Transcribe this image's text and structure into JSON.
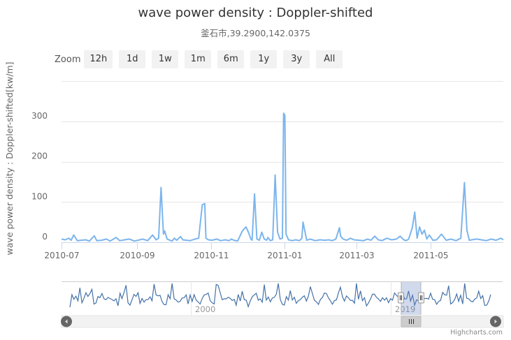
{
  "chart_data": {
    "type": "line",
    "title": "wave power density : Doppler-shifted",
    "subtitle": "釜石市,39.2900,142.0375",
    "ylabel": "wave power density : Doppler-shifted[kw/m]",
    "ylim": [
      0,
      400
    ],
    "y_ticks": [
      "0",
      "100",
      "200",
      "300"
    ],
    "x_ticks": [
      "2010-07",
      "2010-09",
      "2010-11",
      "2011-01",
      "2011-03",
      "2011-05"
    ],
    "grid": true,
    "legend": "none",
    "color": "#7cb5ec",
    "series": [
      {
        "x": [
          "2010-07-01",
          "2010-07-04",
          "2010-07-07",
          "2010-07-09",
          "2010-07-11",
          "2010-07-14",
          "2010-07-17",
          "2010-07-21",
          "2010-07-24",
          "2010-07-28",
          "2010-07-30",
          "2010-08-03",
          "2010-08-07",
          "2010-08-10",
          "2010-08-15",
          "2010-08-18",
          "2010-08-22",
          "2010-08-26",
          "2010-08-30",
          "2010-09-02",
          "2010-09-06",
          "2010-09-10",
          "2010-09-14",
          "2010-09-17",
          "2010-09-19",
          "2010-09-21",
          "2010-09-23",
          "2010-09-24",
          "2010-09-26",
          "2010-09-30",
          "2010-10-02",
          "2010-10-04",
          "2010-10-07",
          "2010-10-09",
          "2010-10-12",
          "2010-10-15",
          "2010-10-19",
          "2010-10-22",
          "2010-10-25",
          "2010-10-27",
          "2010-10-28",
          "2010-10-30",
          "2010-11-02",
          "2010-11-06",
          "2010-11-09",
          "2010-11-13",
          "2010-11-16",
          "2010-11-18",
          "2010-11-20",
          "2010-11-23",
          "2010-11-25",
          "2010-11-27",
          "2010-11-30",
          "2010-12-02",
          "2010-12-04",
          "2010-12-05",
          "2010-12-07",
          "2010-12-09",
          "2010-12-11",
          "2010-12-13",
          "2010-12-15",
          "2010-12-17",
          "2010-12-18",
          "2010-12-20",
          "2010-12-22",
          "2010-12-24",
          "2010-12-26",
          "2010-12-28",
          "2010-12-30",
          "2010-12-31",
          "2011-01-01",
          "2011-01-02",
          "2011-01-04",
          "2011-01-07",
          "2011-01-10",
          "2011-01-13",
          "2011-01-15",
          "2011-01-16",
          "2011-01-19",
          "2011-01-22",
          "2011-01-26",
          "2011-01-30",
          "2011-02-03",
          "2011-02-06",
          "2011-02-09",
          "2011-02-12",
          "2011-02-15",
          "2011-02-16",
          "2011-02-18",
          "2011-02-21",
          "2011-02-24",
          "2011-02-27",
          "2011-03-03",
          "2011-03-07",
          "2011-03-10",
          "2011-03-13",
          "2011-03-16",
          "2011-03-19",
          "2011-03-22",
          "2011-03-26",
          "2011-03-30",
          "2011-04-03",
          "2011-04-06",
          "2011-04-09",
          "2011-04-11",
          "2011-04-13",
          "2011-04-16",
          "2011-04-18",
          "2011-04-20",
          "2011-04-22",
          "2011-04-24",
          "2011-04-26",
          "2011-04-28",
          "2011-04-30",
          "2011-05-03",
          "2011-05-06",
          "2011-05-10",
          "2011-05-14",
          "2011-05-18",
          "2011-05-22",
          "2011-05-26",
          "2011-05-29",
          "2011-05-31",
          "2011-06-02",
          "2011-06-04",
          "2011-06-08",
          "2011-06-12",
          "2011-06-16",
          "2011-06-20",
          "2011-06-24",
          "2011-06-28",
          "2011-06-30"
        ],
        "values": [
          8,
          6,
          10,
          5,
          18,
          4,
          5,
          6,
          3,
          16,
          4,
          5,
          8,
          3,
          12,
          4,
          6,
          8,
          3,
          5,
          8,
          4,
          18,
          6,
          10,
          136,
          20,
          28,
          8,
          3,
          10,
          5,
          14,
          6,
          5,
          4,
          8,
          10,
          93,
          96,
          10,
          6,
          5,
          8,
          4,
          6,
          4,
          8,
          5,
          3,
          15,
          28,
          38,
          25,
          8,
          5,
          120,
          8,
          5,
          25,
          8,
          5,
          12,
          4,
          6,
          167,
          25,
          8,
          10,
          320,
          315,
          20,
          6,
          4,
          6,
          4,
          10,
          50,
          5,
          8,
          4,
          6,
          5,
          6,
          4,
          8,
          36,
          15,
          8,
          5,
          10,
          6,
          5,
          4,
          8,
          5,
          15,
          6,
          4,
          10,
          6,
          8,
          15,
          6,
          4,
          8,
          36,
          75,
          10,
          38,
          20,
          30,
          8,
          18,
          5,
          6,
          20,
          5,
          8,
          4,
          10,
          148,
          30,
          5,
          6,
          8,
          6,
          4,
          8,
          5,
          10,
          6
        ]
      }
    ]
  },
  "zoom": {
    "label": "Zoom",
    "buttons": [
      "12h",
      "1d",
      "1w",
      "1m",
      "6m",
      "1y",
      "3y",
      "All"
    ]
  },
  "navigator": {
    "labels": [
      "2000",
      "2019"
    ]
  },
  "credits": "Highcharts.com"
}
